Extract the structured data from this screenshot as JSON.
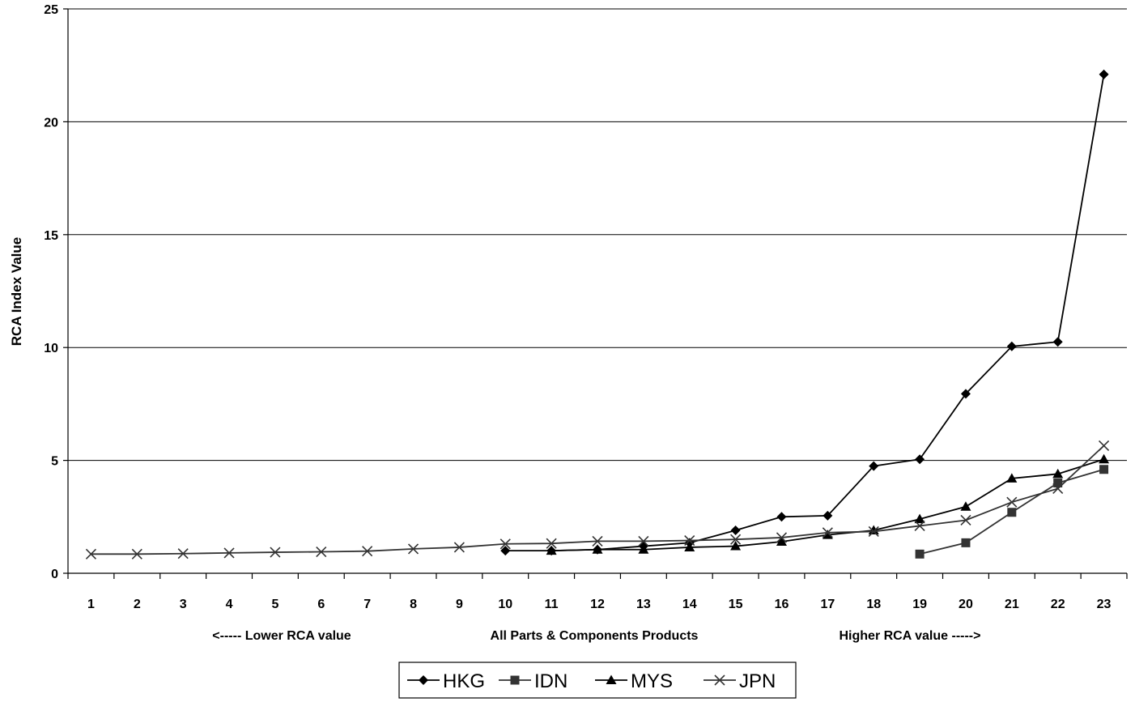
{
  "chart_data": {
    "type": "line",
    "title": "",
    "ylabel": "RCA Index Value",
    "xlabel": "All Parts & Components Products",
    "annotations": {
      "left": "<----- Lower RCA value",
      "right": "Higher RCA value ----->"
    },
    "x": [
      1,
      2,
      3,
      4,
      5,
      6,
      7,
      8,
      9,
      10,
      11,
      12,
      13,
      14,
      15,
      16,
      17,
      18,
      19,
      20,
      21,
      22,
      23
    ],
    "ylim": [
      0,
      25
    ],
    "yticks": [
      0,
      5,
      10,
      15,
      20,
      25
    ],
    "grid": true,
    "legend_position": "bottom",
    "series": [
      {
        "name": "HKG",
        "marker": "diamond",
        "color": "#000000",
        "values": [
          null,
          null,
          null,
          null,
          null,
          null,
          null,
          null,
          null,
          1.0,
          1.0,
          1.05,
          1.2,
          1.35,
          1.9,
          2.5,
          2.55,
          4.75,
          5.05,
          7.95,
          10.05,
          10.25,
          22.1
        ]
      },
      {
        "name": "IDN",
        "marker": "square",
        "color": "#333333",
        "values": [
          null,
          null,
          null,
          null,
          null,
          null,
          null,
          null,
          null,
          null,
          null,
          null,
          null,
          null,
          null,
          null,
          null,
          null,
          0.85,
          1.35,
          2.7,
          4.0,
          4.6
        ]
      },
      {
        "name": "MYS",
        "marker": "triangle",
        "color": "#000000",
        "values": [
          null,
          null,
          null,
          null,
          null,
          null,
          null,
          null,
          null,
          null,
          1.0,
          1.05,
          1.05,
          1.15,
          1.2,
          1.4,
          1.7,
          1.9,
          2.4,
          2.95,
          4.2,
          4.4,
          5.05
        ]
      },
      {
        "name": "JPN",
        "marker": "x",
        "color": "#333333",
        "values": [
          0.85,
          0.85,
          0.87,
          0.9,
          0.93,
          0.95,
          0.98,
          1.08,
          1.15,
          1.3,
          1.32,
          1.42,
          1.42,
          1.45,
          1.5,
          1.58,
          1.8,
          1.85,
          2.1,
          2.35,
          3.15,
          3.75,
          5.65
        ]
      }
    ]
  }
}
